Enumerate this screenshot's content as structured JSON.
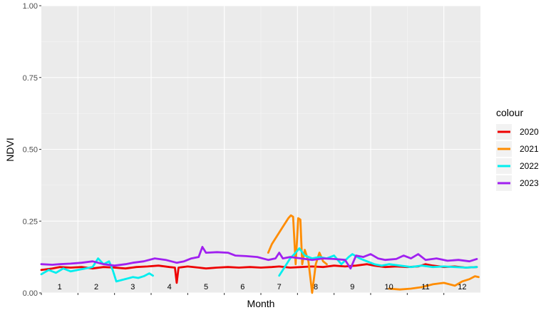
{
  "chart_data": {
    "type": "line",
    "xlabel": "Month",
    "ylabel": "NDVI",
    "xlim": [
      0.5,
      12.5
    ],
    "ylim": [
      0,
      1
    ],
    "y_ticks": [
      "0.00",
      "0.25",
      "0.50",
      "0.75",
      "1.00"
    ],
    "y_tick_values": [
      0,
      0.25,
      0.5,
      0.75,
      1.0
    ],
    "x_tick_labels": [
      "1",
      "2",
      "3",
      "4",
      "5",
      "6",
      "7",
      "8",
      "9",
      "10",
      "11",
      "12"
    ],
    "grid": true,
    "legend": {
      "title": "colour",
      "placement": "right"
    },
    "series": [
      {
        "name": "2020",
        "color": "#ee0000",
        "points": [
          [
            0.5,
            0.08
          ],
          [
            0.8,
            0.085
          ],
          [
            1.0,
            0.09
          ],
          [
            1.3,
            0.088
          ],
          [
            1.6,
            0.09
          ],
          [
            1.9,
            0.085
          ],
          [
            2.2,
            0.09
          ],
          [
            2.5,
            0.088
          ],
          [
            2.8,
            0.085
          ],
          [
            3.1,
            0.09
          ],
          [
            3.4,
            0.092
          ],
          [
            3.7,
            0.095
          ],
          [
            4.0,
            0.09
          ],
          [
            4.15,
            0.088
          ],
          [
            4.2,
            0.035
          ],
          [
            4.25,
            0.088
          ],
          [
            4.5,
            0.092
          ],
          [
            4.8,
            0.088
          ],
          [
            5.0,
            0.085
          ],
          [
            5.3,
            0.088
          ],
          [
            5.6,
            0.09
          ],
          [
            5.9,
            0.088
          ],
          [
            6.2,
            0.09
          ],
          [
            6.5,
            0.088
          ],
          [
            6.8,
            0.09
          ],
          [
            7.0,
            0.092
          ],
          [
            7.3,
            0.088
          ],
          [
            7.6,
            0.09
          ],
          [
            7.9,
            0.092
          ],
          [
            8.2,
            0.09
          ],
          [
            8.5,
            0.095
          ],
          [
            8.8,
            0.092
          ],
          [
            9.1,
            0.095
          ],
          [
            9.4,
            0.1
          ],
          [
            9.6,
            0.095
          ],
          [
            9.9,
            0.09
          ],
          [
            10.2,
            0.092
          ],
          [
            10.5,
            0.09
          ],
          [
            10.8,
            0.092
          ],
          [
            11.0,
            0.1
          ],
          [
            11.2,
            0.095
          ],
          [
            11.5,
            0.09
          ],
          [
            11.8,
            0.092
          ],
          [
            12.1,
            0.088
          ],
          [
            12.4,
            0.09
          ]
        ]
      },
      {
        "name": "2021",
        "color": "#ff8c00",
        "points": [
          [
            6.7,
            0.14
          ],
          [
            6.8,
            0.17
          ],
          [
            6.95,
            0.2
          ],
          [
            7.1,
            0.23
          ],
          [
            7.25,
            0.26
          ],
          [
            7.32,
            0.27
          ],
          [
            7.38,
            0.265
          ],
          [
            7.45,
            0.1
          ],
          [
            7.52,
            0.26
          ],
          [
            7.58,
            0.255
          ],
          [
            7.63,
            0.1
          ],
          [
            7.7,
            0.15
          ],
          [
            7.8,
            0.11
          ],
          [
            7.9,
            0.0
          ],
          [
            8.0,
            0.1
          ],
          [
            8.1,
            0.14
          ],
          [
            8.2,
            0.11
          ],
          [
            8.3,
            0.1
          ],
          null,
          [
            10.0,
            0.015
          ],
          [
            10.3,
            0.012
          ],
          [
            10.6,
            0.015
          ],
          [
            10.9,
            0.02
          ],
          [
            11.2,
            0.03
          ],
          [
            11.5,
            0.035
          ],
          [
            11.8,
            0.025
          ],
          [
            12.0,
            0.04
          ],
          [
            12.2,
            0.048
          ],
          [
            12.35,
            0.058
          ],
          [
            12.45,
            0.055
          ]
        ]
      },
      {
        "name": "2022",
        "color": "#00eeee",
        "points": [
          [
            0.5,
            0.065
          ],
          [
            0.7,
            0.08
          ],
          [
            0.9,
            0.07
          ],
          [
            1.1,
            0.085
          ],
          [
            1.3,
            0.075
          ],
          [
            1.5,
            0.08
          ],
          [
            1.7,
            0.085
          ],
          [
            1.9,
            0.09
          ],
          [
            2.05,
            0.12
          ],
          [
            2.2,
            0.1
          ],
          [
            2.35,
            0.11
          ],
          [
            2.45,
            0.08
          ],
          [
            2.55,
            0.04
          ],
          [
            2.7,
            0.045
          ],
          [
            2.85,
            0.05
          ],
          [
            3.0,
            0.055
          ],
          [
            3.15,
            0.052
          ],
          [
            3.3,
            0.058
          ],
          [
            3.45,
            0.068
          ],
          [
            3.55,
            0.06
          ],
          null,
          [
            7.0,
            0.06
          ],
          [
            7.15,
            0.09
          ],
          [
            7.3,
            0.12
          ],
          [
            7.45,
            0.14
          ],
          [
            7.55,
            0.155
          ],
          [
            7.7,
            0.13
          ],
          [
            7.9,
            0.12
          ],
          [
            8.1,
            0.125
          ],
          [
            8.3,
            0.12
          ],
          [
            8.5,
            0.13
          ],
          [
            8.7,
            0.1
          ],
          [
            8.9,
            0.125
          ],
          [
            9.0,
            0.135
          ],
          [
            9.2,
            0.12
          ],
          [
            9.4,
            0.11
          ],
          [
            9.6,
            0.1
          ],
          [
            9.8,
            0.095
          ],
          [
            10.0,
            0.1
          ],
          [
            10.3,
            0.095
          ],
          [
            10.6,
            0.09
          ],
          [
            10.9,
            0.095
          ],
          [
            11.2,
            0.09
          ],
          [
            11.5,
            0.092
          ],
          [
            11.8,
            0.09
          ],
          [
            12.1,
            0.088
          ],
          [
            12.4,
            0.09
          ]
        ]
      },
      {
        "name": "2023",
        "color": "#a020f0",
        "points": [
          [
            0.5,
            0.1
          ],
          [
            0.8,
            0.098
          ],
          [
            1.0,
            0.1
          ],
          [
            1.3,
            0.102
          ],
          [
            1.6,
            0.105
          ],
          [
            1.9,
            0.11
          ],
          [
            2.2,
            0.1
          ],
          [
            2.5,
            0.095
          ],
          [
            2.8,
            0.1
          ],
          [
            3.0,
            0.105
          ],
          [
            3.3,
            0.11
          ],
          [
            3.6,
            0.12
          ],
          [
            3.9,
            0.115
          ],
          [
            4.2,
            0.105
          ],
          [
            4.4,
            0.11
          ],
          [
            4.6,
            0.12
          ],
          [
            4.8,
            0.125
          ],
          [
            4.9,
            0.16
          ],
          [
            5.0,
            0.14
          ],
          [
            5.3,
            0.142
          ],
          [
            5.6,
            0.14
          ],
          [
            5.8,
            0.13
          ],
          [
            6.1,
            0.128
          ],
          [
            6.4,
            0.125
          ],
          [
            6.7,
            0.115
          ],
          [
            6.9,
            0.12
          ],
          [
            7.0,
            0.14
          ],
          [
            7.1,
            0.12
          ],
          [
            7.3,
            0.125
          ],
          [
            7.6,
            0.12
          ],
          [
            7.9,
            0.115
          ],
          [
            8.2,
            0.12
          ],
          [
            8.5,
            0.118
          ],
          [
            8.8,
            0.115
          ],
          [
            8.95,
            0.085
          ],
          [
            9.1,
            0.13
          ],
          [
            9.3,
            0.125
          ],
          [
            9.5,
            0.135
          ],
          [
            9.7,
            0.12
          ],
          [
            9.9,
            0.115
          ],
          [
            10.2,
            0.118
          ],
          [
            10.4,
            0.13
          ],
          [
            10.6,
            0.12
          ],
          [
            10.8,
            0.135
          ],
          [
            11.0,
            0.115
          ],
          [
            11.3,
            0.12
          ],
          [
            11.6,
            0.112
          ],
          [
            11.9,
            0.115
          ],
          [
            12.2,
            0.11
          ],
          [
            12.4,
            0.118
          ]
        ]
      }
    ]
  }
}
